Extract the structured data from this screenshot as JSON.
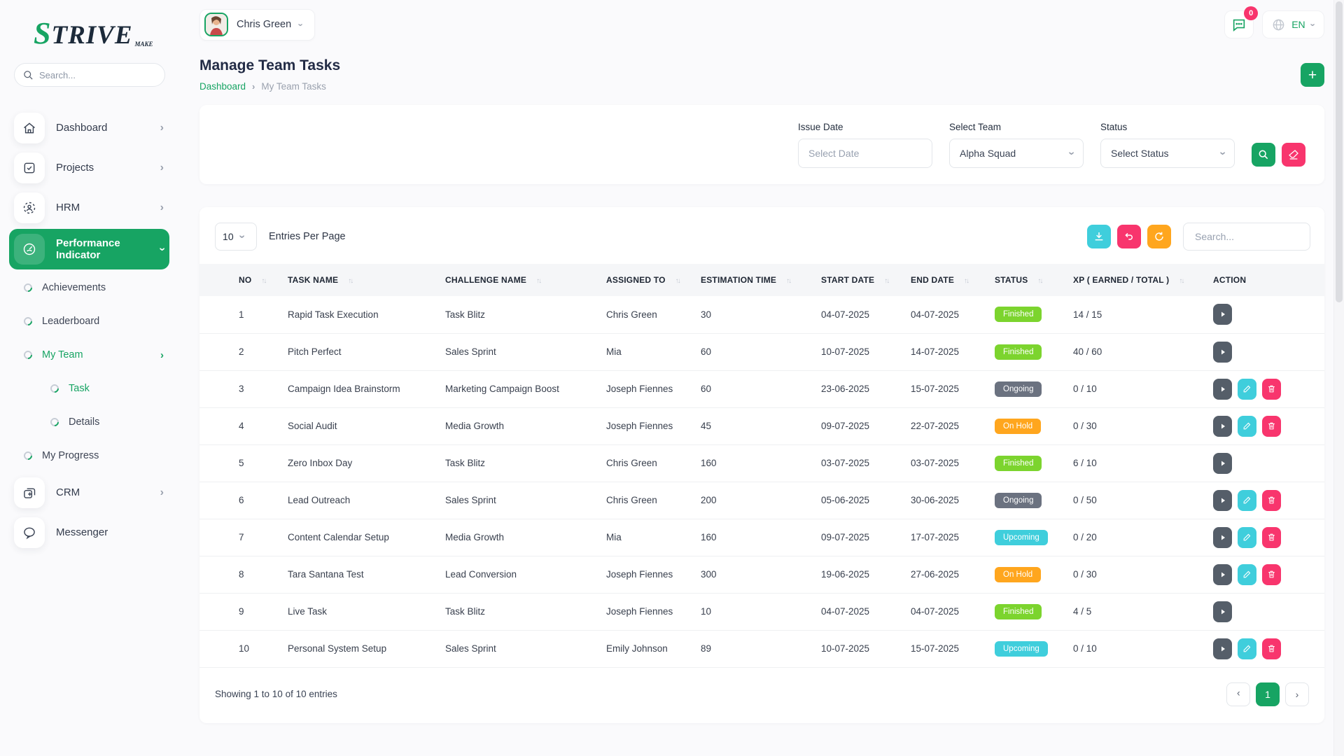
{
  "brand": {
    "logo_text": "STRIVE",
    "logo_tagline": "MAKE"
  },
  "topbar": {
    "user_name": "Chris Green",
    "messages_badge": "0",
    "language": "EN"
  },
  "sidebar": {
    "search_placeholder": "Search...",
    "items": [
      {
        "label": "Dashboard",
        "icon": "home-icon",
        "type": "main",
        "chevron": "right"
      },
      {
        "label": "Projects",
        "icon": "projects-icon",
        "type": "main",
        "chevron": "right"
      },
      {
        "label": "HRM",
        "icon": "hrm-icon",
        "type": "main",
        "chevron": "right"
      },
      {
        "label": "Performance Indicator",
        "icon": "performance-icon",
        "type": "main",
        "chevron": "down",
        "active": true
      },
      {
        "label": "Achievements",
        "type": "sub"
      },
      {
        "label": "Leaderboard",
        "type": "sub"
      },
      {
        "label": "My Team",
        "type": "sub",
        "chevron": "right",
        "active": true
      },
      {
        "label": "Task",
        "type": "subsub",
        "active": true
      },
      {
        "label": "Details",
        "type": "subsub"
      },
      {
        "label": "My Progress",
        "type": "sub"
      },
      {
        "label": "CRM",
        "icon": "crm-icon",
        "type": "main",
        "chevron": "right"
      },
      {
        "label": "Messenger",
        "icon": "messenger-icon",
        "type": "main"
      }
    ]
  },
  "page": {
    "title": "Manage Team Tasks",
    "breadcrumb": [
      "Dashboard",
      "My Team Tasks"
    ]
  },
  "filters": {
    "issue_date_label": "Issue Date",
    "issue_date_placeholder": "Select Date",
    "team_label": "Select Team",
    "team_value": "Alpha Squad",
    "status_label": "Status",
    "status_value": "Select Status"
  },
  "table": {
    "per_page": "10",
    "per_page_label": "Entries Per Page",
    "search_placeholder": "Search...",
    "columns": [
      {
        "label": "NO",
        "sortable": true,
        "class": "c-no"
      },
      {
        "label": "TASK NAME",
        "sortable": true,
        "class": "c-task"
      },
      {
        "label": "CHALLENGE NAME",
        "sortable": true,
        "class": "c-chal"
      },
      {
        "label": "ASSIGNED TO",
        "sortable": true,
        "class": "c-asg"
      },
      {
        "label": "ESTIMATION TIME",
        "sortable": true,
        "class": "c-est"
      },
      {
        "label": "START DATE",
        "sortable": true,
        "class": "c-start"
      },
      {
        "label": "END DATE",
        "sortable": true,
        "class": "c-end"
      },
      {
        "label": "STATUS",
        "sortable": true,
        "class": "c-status"
      },
      {
        "label": "XP ( EARNED / TOTAL )",
        "sortable": true,
        "class": "c-xp"
      },
      {
        "label": "ACTION",
        "sortable": false,
        "class": "c-act"
      }
    ],
    "rows": [
      {
        "no": "1",
        "task_name": "Rapid Task Execution",
        "challenge_name": "Task Blitz",
        "assigned_to": "Chris Green",
        "estimation_time": "30",
        "start_date": "04-07-2025",
        "end_date": "04-07-2025",
        "status": "Finished",
        "xp": "14 / 15",
        "actions": [
          "view"
        ]
      },
      {
        "no": "2",
        "task_name": "Pitch Perfect",
        "challenge_name": "Sales Sprint",
        "assigned_to": "Mia",
        "estimation_time": "60",
        "start_date": "10-07-2025",
        "end_date": "14-07-2025",
        "status": "Finished",
        "xp": "40 / 60",
        "actions": [
          "view"
        ]
      },
      {
        "no": "3",
        "task_name": "Campaign Idea Brainstorm",
        "challenge_name": "Marketing Campaign Boost",
        "assigned_to": "Joseph Fiennes",
        "estimation_time": "60",
        "start_date": "23-06-2025",
        "end_date": "15-07-2025",
        "status": "Ongoing",
        "xp": "0 / 10",
        "actions": [
          "view",
          "edit",
          "delete"
        ]
      },
      {
        "no": "4",
        "task_name": "Social Audit",
        "challenge_name": "Media Growth",
        "assigned_to": "Joseph Fiennes",
        "estimation_time": "45",
        "start_date": "09-07-2025",
        "end_date": "22-07-2025",
        "status": "On Hold",
        "xp": "0 / 30",
        "actions": [
          "view",
          "edit",
          "delete"
        ]
      },
      {
        "no": "5",
        "task_name": "Zero Inbox Day",
        "challenge_name": "Task Blitz",
        "assigned_to": "Chris Green",
        "estimation_time": "160",
        "start_date": "03-07-2025",
        "end_date": "03-07-2025",
        "status": "Finished",
        "xp": "6 / 10",
        "actions": [
          "view"
        ]
      },
      {
        "no": "6",
        "task_name": "Lead Outreach",
        "challenge_name": "Sales Sprint",
        "assigned_to": "Chris Green",
        "estimation_time": "200",
        "start_date": "05-06-2025",
        "end_date": "30-06-2025",
        "status": "Ongoing",
        "xp": "0 / 50",
        "actions": [
          "view",
          "edit",
          "delete"
        ]
      },
      {
        "no": "7",
        "task_name": "Content Calendar Setup",
        "challenge_name": "Media Growth",
        "assigned_to": "Mia",
        "estimation_time": "160",
        "start_date": "09-07-2025",
        "end_date": "17-07-2025",
        "status": "Upcoming",
        "xp": "0 / 20",
        "actions": [
          "view",
          "edit",
          "delete"
        ]
      },
      {
        "no": "8",
        "task_name": "Tara Santana Test",
        "challenge_name": "Lead Conversion",
        "assigned_to": "Joseph Fiennes",
        "estimation_time": "300",
        "start_date": "19-06-2025",
        "end_date": "27-06-2025",
        "status": "On Hold",
        "xp": "0 / 30",
        "actions": [
          "view",
          "edit",
          "delete"
        ]
      },
      {
        "no": "9",
        "task_name": "Live Task",
        "challenge_name": "Task Blitz",
        "assigned_to": "Joseph Fiennes",
        "estimation_time": "10",
        "start_date": "04-07-2025",
        "end_date": "04-07-2025",
        "status": "Finished",
        "xp": "4 / 5",
        "actions": [
          "view"
        ]
      },
      {
        "no": "10",
        "task_name": "Personal System Setup",
        "challenge_name": "Sales Sprint",
        "assigned_to": "Emily Johnson",
        "estimation_time": "89",
        "start_date": "10-07-2025",
        "end_date": "15-07-2025",
        "status": "Upcoming",
        "xp": "0 / 10",
        "actions": [
          "view",
          "edit",
          "delete"
        ]
      }
    ],
    "footer_summary": "Showing 1 to 10 of 10 entries",
    "current_page": "1"
  },
  "colors": {
    "accent_green": "#17A463",
    "badge_finished": "#7CD42E",
    "badge_ongoing": "#6B7280",
    "badge_on_hold": "#FFA61E",
    "badge_upcoming": "#3FCEDC",
    "pink": "#F8356D",
    "teal": "#3FCEDC",
    "orange": "#FFA61E",
    "action_slate": "#555E69"
  }
}
